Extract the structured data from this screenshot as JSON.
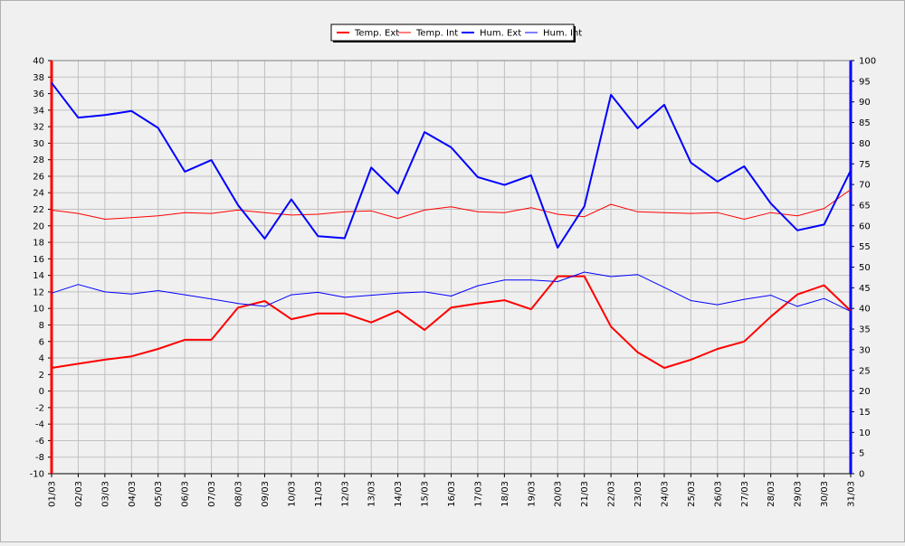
{
  "chart_data": {
    "type": "line",
    "categories": [
      "01/03",
      "02/03",
      "03/03",
      "04/03",
      "05/03",
      "06/03",
      "07/03",
      "08/03",
      "09/03",
      "10/03",
      "11/03",
      "12/03",
      "13/03",
      "14/03",
      "15/03",
      "16/03",
      "17/03",
      "18/03",
      "19/03",
      "20/03",
      "21/03",
      "22/03",
      "23/03",
      "24/03",
      "25/03",
      "26/03",
      "27/03",
      "28/03",
      "29/03",
      "30/03",
      "31/03"
    ],
    "left_axis": {
      "ylim": [
        -10,
        40
      ],
      "ticks": [
        "40",
        "38",
        "36",
        "34",
        "32",
        "30",
        "28",
        "26",
        "24",
        "22",
        "20",
        "18",
        "16",
        "14",
        "12",
        "10",
        "8",
        "6",
        "4",
        "2",
        "0",
        "-2",
        "-4",
        "-6",
        "-8",
        "-10"
      ],
      "color": "#ff0000"
    },
    "right_axis": {
      "ylim": [
        0,
        100
      ],
      "ticks": [
        "100",
        "95",
        "90",
        "85",
        "80",
        "75",
        "70",
        "65",
        "60",
        "55",
        "50",
        "45",
        "40",
        "35",
        "30",
        "25",
        "20",
        "15",
        "10",
        "5",
        "0"
      ],
      "color": "#0000ff"
    },
    "grid": true,
    "legend_position": "top-center",
    "series": [
      {
        "name": "Temp. Ext",
        "axis": "left",
        "color": "#ff0000",
        "width": "thick",
        "values": [
          2.8,
          3.3,
          3.8,
          4.2,
          5.1,
          6.2,
          6.2,
          10.1,
          10.9,
          8.7,
          9.4,
          9.4,
          8.3,
          9.7,
          7.4,
          10.1,
          10.6,
          11.0,
          9.9,
          13.9,
          13.9,
          7.8,
          4.7,
          2.8,
          3.8,
          5.1,
          6.0,
          9.0,
          11.7,
          12.8,
          9.7
        ]
      },
      {
        "name": "Temp. Int",
        "axis": "left",
        "color": "#ff0000",
        "width": "thin",
        "values": [
          21.9,
          21.5,
          20.8,
          21.0,
          21.2,
          21.6,
          21.5,
          21.9,
          21.6,
          21.3,
          21.4,
          21.7,
          21.8,
          20.9,
          21.9,
          22.3,
          21.7,
          21.6,
          22.2,
          21.4,
          21.1,
          22.6,
          21.7,
          21.6,
          21.5,
          21.6,
          20.8,
          21.6,
          21.2,
          22.1,
          24.4
        ]
      },
      {
        "name": "Hum. Ext",
        "axis": "right",
        "color": "#0000ff",
        "width": "thick",
        "values": [
          94.6,
          86.2,
          86.8,
          87.8,
          83.7,
          73.1,
          75.9,
          65.0,
          56.9,
          66.4,
          57.5,
          57.0,
          74.1,
          67.8,
          82.7,
          79.0,
          71.8,
          69.9,
          72.2,
          54.7,
          64.7,
          91.7,
          83.6,
          89.3,
          75.3,
          70.7,
          74.4,
          65.4,
          58.9,
          60.3,
          73.4
        ]
      },
      {
        "name": "Hum. Int",
        "axis": "right",
        "color": "#0000ff",
        "width": "thin",
        "values": [
          43.7,
          45.8,
          44.0,
          43.5,
          44.3,
          43.3,
          42.3,
          41.2,
          40.5,
          43.3,
          43.9,
          42.7,
          43.2,
          43.7,
          44.0,
          43.0,
          45.5,
          46.9,
          46.9,
          46.5,
          48.8,
          47.7,
          48.2,
          45.1,
          41.9,
          40.9,
          42.2,
          43.2,
          40.5,
          42.4,
          39.3
        ]
      }
    ]
  }
}
